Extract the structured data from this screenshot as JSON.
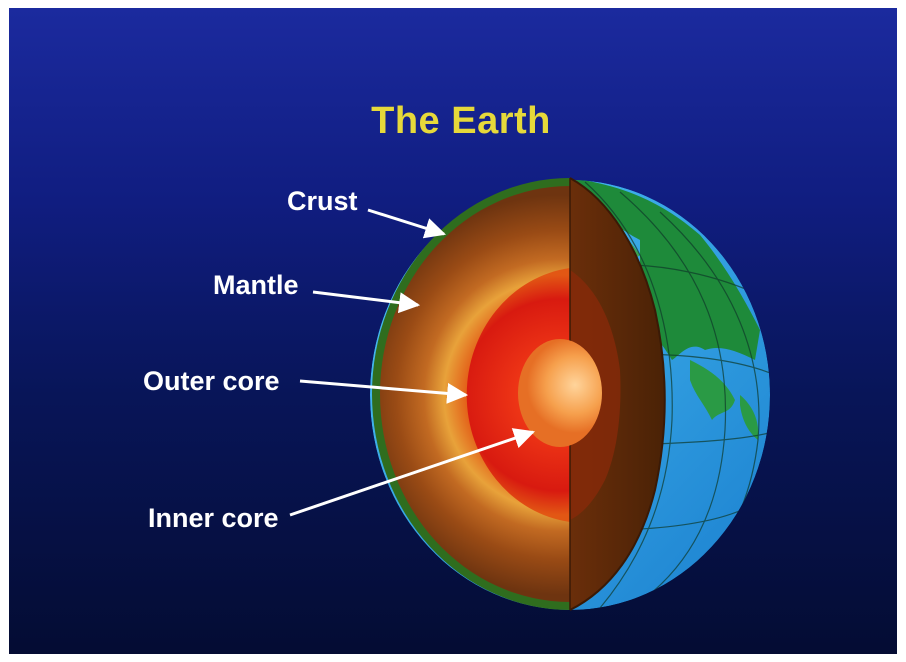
{
  "title": "The Earth",
  "labels": {
    "crust": "Crust",
    "mantle": "Mantle",
    "outer_core": "Outer core",
    "inner_core": "Inner core"
  },
  "colors": {
    "background_top": "#1b2a9e",
    "background_bottom": "#040c33",
    "title": "#e6d93a",
    "label": "#ffffff",
    "crust": "#2f6d1e",
    "mantle": "#9a4b15",
    "outer_core": "#d81a10",
    "inner_core": "#f08a3a",
    "ocean": "#33aee8",
    "land": "#1e8a3a"
  }
}
